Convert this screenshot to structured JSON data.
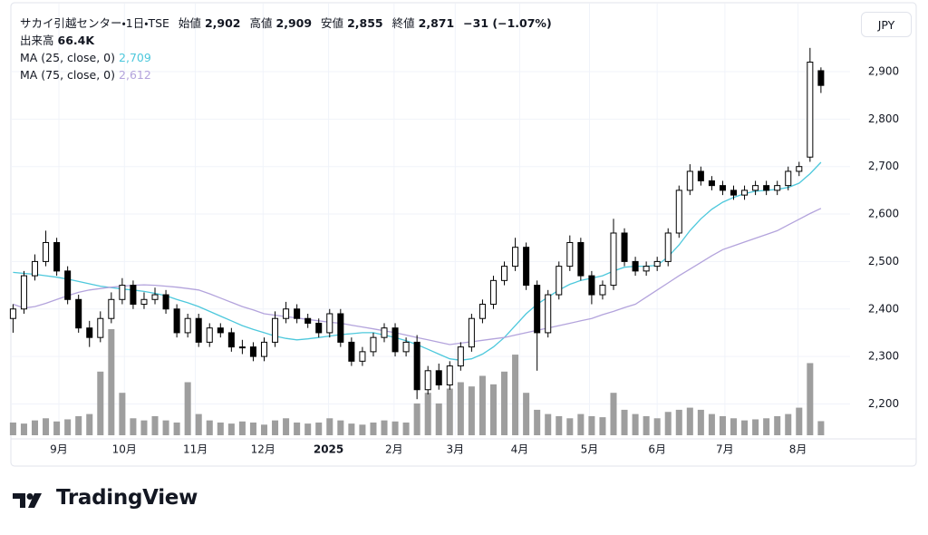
{
  "chart_data": {
    "type": "candlestick",
    "title": "サカイ引越センター・1日・TSE",
    "legend_values": [
      {
        "label": "始値",
        "value": "2,902"
      },
      {
        "label": "高値",
        "value": "2,909"
      },
      {
        "label": "安値",
        "value": "2,855"
      },
      {
        "label": "終値",
        "value": "2,871"
      }
    ],
    "change": "−31 (−1.07%)",
    "volume_label": "出来高",
    "volume_value_label": "66.4K",
    "currency": "JPY",
    "up_color": "#ffffff",
    "down_color": "#000000",
    "volume_color": "#9e9e9e",
    "grid": true,
    "ohlc": {
      "open": [
        2380,
        2400,
        2470,
        2500,
        2540,
        2480,
        2420,
        2360,
        2340,
        2380,
        2420,
        2450,
        2410,
        2420,
        2430,
        2400,
        2350,
        2380,
        2330,
        2360,
        2350,
        2320,
        2320,
        2300,
        2330,
        2380,
        2400,
        2380,
        2370,
        2350,
        2390,
        2330,
        2290,
        2310,
        2340,
        2360,
        2310,
        2330,
        2230,
        2270,
        2240,
        2280,
        2320,
        2380,
        2410,
        2460,
        2490,
        2530,
        2450,
        2350,
        2430,
        2490,
        2540,
        2470,
        2430,
        2450,
        2560,
        2500,
        2480,
        2490,
        2500,
        2560,
        2650,
        2690,
        2670,
        2660,
        2650,
        2640,
        2650,
        2660,
        2650,
        2660,
        2690,
        2720,
        2902
      ],
      "high": [
        2410,
        2480,
        2515,
        2565,
        2550,
        2490,
        2430,
        2375,
        2395,
        2435,
        2465,
        2460,
        2435,
        2445,
        2440,
        2410,
        2390,
        2390,
        2370,
        2370,
        2360,
        2335,
        2330,
        2340,
        2395,
        2415,
        2410,
        2390,
        2380,
        2400,
        2400,
        2340,
        2320,
        2350,
        2370,
        2370,
        2340,
        2345,
        2280,
        2285,
        2290,
        2330,
        2390,
        2420,
        2470,
        2500,
        2550,
        2540,
        2460,
        2440,
        2500,
        2555,
        2550,
        2480,
        2460,
        2590,
        2570,
        2510,
        2500,
        2510,
        2570,
        2660,
        2705,
        2700,
        2680,
        2670,
        2660,
        2660,
        2670,
        2670,
        2670,
        2700,
        2710,
        2950,
        2909
      ],
      "low": [
        2350,
        2390,
        2460,
        2490,
        2470,
        2410,
        2350,
        2320,
        2330,
        2370,
        2410,
        2400,
        2400,
        2410,
        2390,
        2340,
        2340,
        2320,
        2320,
        2340,
        2310,
        2305,
        2290,
        2290,
        2320,
        2370,
        2370,
        2360,
        2340,
        2340,
        2320,
        2280,
        2280,
        2300,
        2330,
        2300,
        2300,
        2210,
        2220,
        2230,
        2230,
        2270,
        2310,
        2370,
        2400,
        2450,
        2480,
        2440,
        2270,
        2340,
        2420,
        2480,
        2460,
        2410,
        2420,
        2440,
        2490,
        2470,
        2470,
        2480,
        2490,
        2550,
        2640,
        2660,
        2650,
        2640,
        2630,
        2630,
        2640,
        2640,
        2640,
        2650,
        2680,
        2710,
        2855
      ],
      "close": [
        2400,
        2470,
        2500,
        2540,
        2480,
        2420,
        2360,
        2340,
        2380,
        2420,
        2450,
        2410,
        2420,
        2430,
        2400,
        2350,
        2380,
        2330,
        2360,
        2350,
        2320,
        2320,
        2300,
        2330,
        2380,
        2400,
        2380,
        2370,
        2350,
        2390,
        2330,
        2290,
        2310,
        2340,
        2360,
        2310,
        2330,
        2230,
        2270,
        2240,
        2280,
        2320,
        2380,
        2410,
        2460,
        2490,
        2530,
        2450,
        2350,
        2430,
        2490,
        2540,
        2470,
        2430,
        2450,
        2560,
        2500,
        2480,
        2490,
        2500,
        2560,
        2650,
        2690,
        2670,
        2660,
        2650,
        2640,
        2650,
        2660,
        2650,
        2660,
        2690,
        2700,
        2920,
        2871
      ]
    },
    "volume": [
      60,
      55,
      70,
      80,
      65,
      75,
      90,
      100,
      300,
      500,
      200,
      80,
      70,
      90,
      70,
      60,
      250,
      100,
      70,
      60,
      55,
      65,
      60,
      50,
      70,
      80,
      60,
      55,
      60,
      80,
      70,
      55,
      50,
      60,
      70,
      65,
      60,
      150,
      200,
      150,
      220,
      250,
      230,
      280,
      240,
      300,
      380,
      200,
      120,
      100,
      90,
      80,
      100,
      90,
      85,
      200,
      120,
      100,
      90,
      80,
      110,
      120,
      130,
      120,
      100,
      90,
      80,
      70,
      75,
      80,
      90,
      100,
      130,
      340,
      66.4
    ],
    "vlim": [
      0,
      2000
    ],
    "series": [
      {
        "name": "MA (25, close, 0)",
        "color": "#4dc8dc",
        "value_label": "2,709",
        "values": [
          2477,
          2475,
          2473,
          2470,
          2467,
          2463,
          2458,
          2453,
          2448,
          2445,
          2442,
          2440,
          2437,
          2433,
          2428,
          2420,
          2413,
          2405,
          2395,
          2385,
          2375,
          2365,
          2357,
          2350,
          2343,
          2338,
          2335,
          2337,
          2340,
          2343,
          2346,
          2348,
          2350,
          2350,
          2345,
          2340,
          2333,
          2325,
          2315,
          2305,
          2295,
          2292,
          2295,
          2305,
          2320,
          2340,
          2365,
          2390,
          2410,
          2425,
          2440,
          2452,
          2460,
          2465,
          2470,
          2480,
          2488,
          2490,
          2490,
          2492,
          2510,
          2535,
          2565,
          2590,
          2610,
          2625,
          2635,
          2643,
          2648,
          2650,
          2652,
          2656,
          2665,
          2685,
          2709
        ]
      },
      {
        "name": "MA (75, close, 0)",
        "color": "#b3a3dc",
        "value_label": "2,612",
        "values": [
          2410,
          2402,
          2405,
          2412,
          2420,
          2428,
          2435,
          2440,
          2443,
          2446,
          2448,
          2450,
          2451,
          2450,
          2448,
          2446,
          2443,
          2440,
          2432,
          2423,
          2414,
          2405,
          2398,
          2390,
          2387,
          2384,
          2381,
          2378,
          2375,
          2372,
          2370,
          2366,
          2362,
          2358,
          2354,
          2350,
          2345,
          2340,
          2335,
          2330,
          2325,
          2328,
          2331,
          2334,
          2337,
          2340,
          2345,
          2350,
          2355,
          2360,
          2365,
          2370,
          2375,
          2380,
          2388,
          2395,
          2403,
          2410,
          2425,
          2440,
          2455,
          2470,
          2484,
          2498,
          2512,
          2525,
          2533,
          2541,
          2549,
          2557,
          2565,
          2577,
          2589,
          2601,
          2612
        ]
      }
    ],
    "xlim": [
      -0.2,
      76.5
    ],
    "xticks": [
      {
        "value": 4.2,
        "label": "9月"
      },
      {
        "value": 10.2,
        "label": "10月"
      },
      {
        "value": 16.7,
        "label": "11月"
      },
      {
        "value": 22.9,
        "label": "12月"
      },
      {
        "value": 28.9,
        "label": "2025"
      },
      {
        "value": 34.9,
        "label": "2月"
      },
      {
        "value": 40.5,
        "label": "3月"
      },
      {
        "value": 46.4,
        "label": "4月"
      },
      {
        "value": 52.8,
        "label": "5月"
      },
      {
        "value": 59,
        "label": "6月"
      },
      {
        "value": 65.2,
        "label": "7月"
      },
      {
        "value": 71.9,
        "label": "8月"
      }
    ],
    "ylim": [
      2134,
      3028
    ],
    "yticks": [
      {
        "value": 2200,
        "label": "2,200"
      },
      {
        "value": 2300,
        "label": "2,300"
      },
      {
        "value": 2400,
        "label": "2,400"
      },
      {
        "value": 2500,
        "label": "2,500"
      },
      {
        "value": 2600,
        "label": "2,600"
      },
      {
        "value": 2700,
        "label": "2,700"
      },
      {
        "value": 2800,
        "label": "2,800"
      },
      {
        "value": 2900,
        "label": "2,900"
      }
    ]
  },
  "branding": {
    "name": "TradingView"
  }
}
